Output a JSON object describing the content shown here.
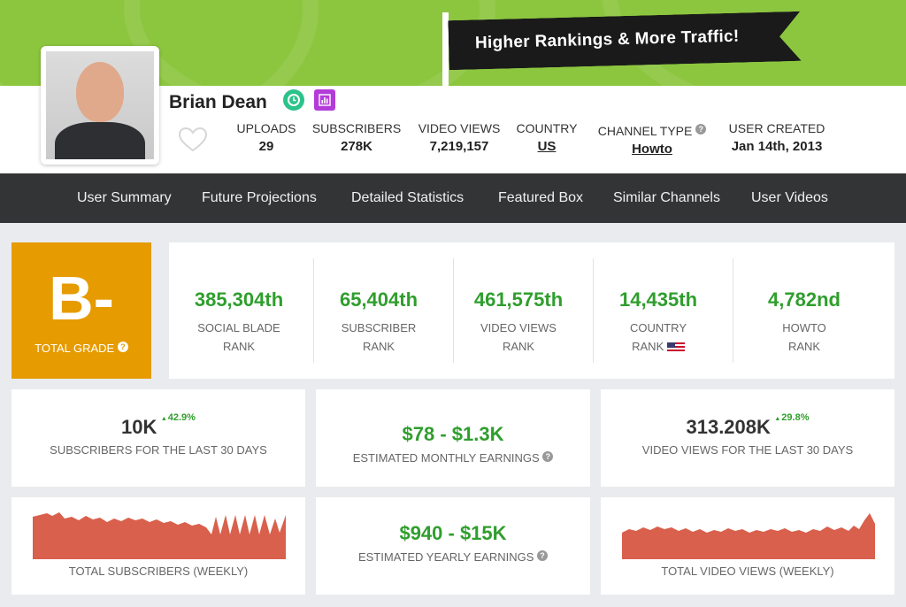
{
  "banner": {
    "slogan": "Higher Rankings & More Traffic!"
  },
  "profile": {
    "name": "Brian Dean",
    "stats": [
      {
        "label": "UPLOADS",
        "value": "29"
      },
      {
        "label": "SUBSCRIBERS",
        "value": "278K"
      },
      {
        "label": "VIDEO VIEWS",
        "value": "7,219,157"
      },
      {
        "label": "COUNTRY",
        "value": "US"
      },
      {
        "label": "CHANNEL TYPE",
        "value": "Howto"
      },
      {
        "label": "USER CREATED",
        "value": "Jan 14th, 2013"
      }
    ]
  },
  "nav": {
    "items": [
      "User Summary",
      "Future Projections",
      "Detailed Statistics",
      "Featured Box",
      "Similar Channels",
      "User Videos"
    ]
  },
  "grade": {
    "value": "B-",
    "label": "TOTAL GRADE"
  },
  "ranks": [
    {
      "value": "385,304th",
      "line1": "SOCIAL BLADE",
      "line2": "RANK"
    },
    {
      "value": "65,404th",
      "line1": "SUBSCRIBER",
      "line2": "RANK"
    },
    {
      "value": "461,575th",
      "line1": "VIDEO VIEWS",
      "line2": "RANK"
    },
    {
      "value": "14,435th",
      "line1": "COUNTRY",
      "line2": "RANK"
    },
    {
      "value": "4,782nd",
      "line1": "HOWTO",
      "line2": "RANK"
    }
  ],
  "summary": {
    "subs30": {
      "value": "10K",
      "change": "42.9%",
      "label": "SUBSCRIBERS FOR THE LAST 30 DAYS"
    },
    "monthly": {
      "value": "$78 - $1.3K",
      "label": "ESTIMATED MONTHLY EARNINGS"
    },
    "views30": {
      "value": "313.208K",
      "change": "29.8%",
      "label": "VIDEO VIEWS FOR THE LAST 30 DAYS"
    },
    "subsWeekly": {
      "label": "TOTAL SUBSCRIBERS (WEEKLY)"
    },
    "yearly": {
      "value": "$940 - $15K",
      "label": "ESTIMATED YEARLY EARNINGS"
    },
    "viewsWeekly": {
      "label": "TOTAL VIDEO VIEWS (WEEKLY)"
    }
  },
  "colors": {
    "green": "#8cc63f",
    "accent_green": "#2f9e2d",
    "grade_orange": "#e69b00",
    "sparkline": "#d9604c",
    "nav_bg": "#333436"
  }
}
